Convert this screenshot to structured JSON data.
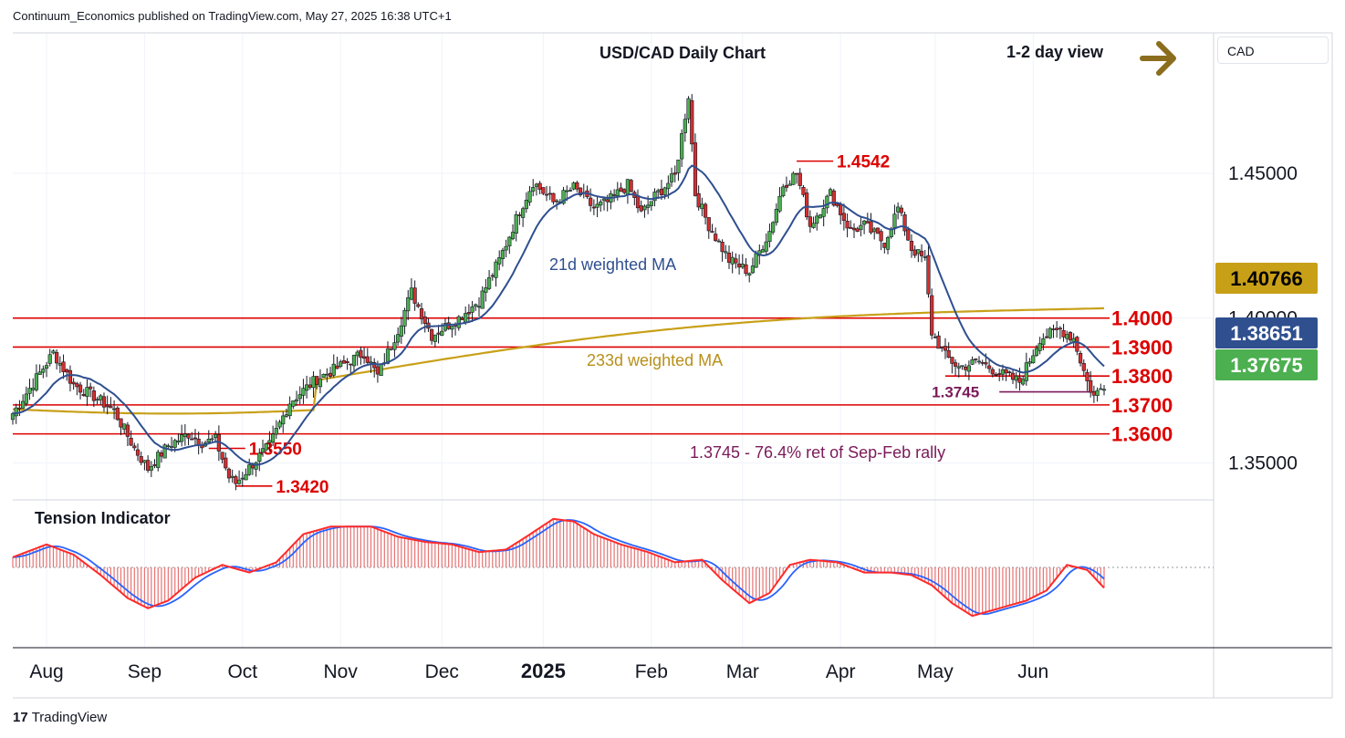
{
  "header": {
    "published": "Continuum_Economics published on TradingView.com, May 27, 2025 16:38 UTC+1"
  },
  "currency_badge": "CAD",
  "footer": {
    "brand": "TradingView",
    "logo_glyph": "17"
  },
  "colors": {
    "candle_up": "#4caf50",
    "candle_down": "#d32f2f",
    "ma21": "#2f4f8f",
    "ma233": "#c8a018",
    "level_line": "#dd0000",
    "fib": "#7b1a5a",
    "arrow": "#8b6d1e",
    "tension_fill": "#e57373",
    "tension_fast": "#ff2a2a",
    "tension_slow": "#2962ff"
  },
  "chart_data": {
    "type": "candlestick",
    "title": "USD/CAD Daily Chart",
    "view_label": "1-2 day view",
    "view_direction": "right",
    "x_ticks": [
      "Aug",
      "Sep",
      "Oct",
      "Nov",
      "Dec",
      "2025",
      "Feb",
      "Mar",
      "Apr",
      "May",
      "Jun"
    ],
    "y_ticks": [
      "1.35000",
      "1.40000",
      "1.45000"
    ],
    "y_tick_values": [
      1.35,
      1.4,
      1.45
    ],
    "ylim": [
      1.3372,
      1.4985
    ],
    "price_tags": [
      {
        "label": "1.40766",
        "value": 1.40766,
        "bg": "#c8a018",
        "color": "#000000"
      },
      {
        "label": "1.38651",
        "value": 1.38651,
        "bg": "#2f4f8f",
        "color": "#ffffff"
      },
      {
        "label": "1.37675",
        "value": 1.37675,
        "bg": "#4caf50",
        "color": "#ffffff"
      }
    ],
    "levels": [
      {
        "label": "1.4000",
        "value": 1.4,
        "scope": "full"
      },
      {
        "label": "1.3900",
        "value": 1.39,
        "scope": "full"
      },
      {
        "label": "1.3800",
        "value": 1.38,
        "scope": "right"
      },
      {
        "label": "1.3700",
        "value": 1.37,
        "scope": "full"
      },
      {
        "label": "1.3600",
        "value": 1.36,
        "scope": "full"
      }
    ],
    "markers": [
      {
        "label": "1.4542",
        "value": 1.4542,
        "date": "Mar"
      },
      {
        "label": "1.3550",
        "value": 1.355,
        "date": "Sep"
      },
      {
        "label": "1.3420",
        "value": 1.342,
        "date": "Sep"
      }
    ],
    "fib": {
      "label": "1.3745",
      "value": 1.3745,
      "note": "1.3745 - 76.4% ret of Sep-Feb rally"
    },
    "series": [
      {
        "name": "21d weighted MA"
      },
      {
        "name": "233d weighted MA"
      }
    ],
    "indicator": {
      "title": "Tension Indicator"
    },
    "anchors": [
      [
        0,
        1.367
      ],
      [
        8,
        1.381
      ],
      [
        12,
        1.388
      ],
      [
        18,
        1.377
      ],
      [
        24,
        1.373
      ],
      [
        30,
        1.368
      ],
      [
        36,
        1.355
      ],
      [
        40,
        1.348
      ],
      [
        46,
        1.356
      ],
      [
        52,
        1.36
      ],
      [
        56,
        1.357
      ],
      [
        60,
        1.358
      ],
      [
        64,
        1.345
      ],
      [
        66,
        1.343
      ],
      [
        72,
        1.351
      ],
      [
        76,
        1.356
      ],
      [
        82,
        1.371
      ],
      [
        90,
        1.379
      ],
      [
        98,
        1.384
      ],
      [
        104,
        1.388
      ],
      [
        108,
        1.38
      ],
      [
        114,
        1.396
      ],
      [
        118,
        1.409
      ],
      [
        124,
        1.394
      ],
      [
        132,
        1.4
      ],
      [
        138,
        1.406
      ],
      [
        144,
        1.42
      ],
      [
        150,
        1.437
      ],
      [
        154,
        1.447
      ],
      [
        160,
        1.44
      ],
      [
        166,
        1.445
      ],
      [
        172,
        1.438
      ],
      [
        176,
        1.44
      ],
      [
        182,
        1.446
      ],
      [
        186,
        1.436
      ],
      [
        190,
        1.442
      ],
      [
        196,
        1.449
      ],
      [
        200,
        1.477
      ],
      [
        202,
        1.443
      ],
      [
        206,
        1.432
      ],
      [
        212,
        1.42
      ],
      [
        218,
        1.416
      ],
      [
        224,
        1.43
      ],
      [
        228,
        1.446
      ],
      [
        232,
        1.45
      ],
      [
        236,
        1.432
      ],
      [
        242,
        1.443
      ],
      [
        248,
        1.43
      ],
      [
        252,
        1.432
      ],
      [
        258,
        1.426
      ],
      [
        262,
        1.438
      ],
      [
        266,
        1.424
      ],
      [
        270,
        1.42
      ],
      [
        272,
        1.395
      ],
      [
        276,
        1.387
      ],
      [
        280,
        1.383
      ],
      [
        286,
        1.385
      ],
      [
        292,
        1.381
      ],
      [
        298,
        1.378
      ],
      [
        304,
        1.393
      ],
      [
        310,
        1.396
      ],
      [
        314,
        1.393
      ],
      [
        318,
        1.378
      ],
      [
        320,
        1.373
      ],
      [
        323,
        1.377
      ]
    ],
    "tension_anchors": [
      [
        0,
        0.4
      ],
      [
        10,
        0.9
      ],
      [
        18,
        0.5
      ],
      [
        26,
        -0.3
      ],
      [
        34,
        -1.2
      ],
      [
        40,
        -1.6
      ],
      [
        46,
        -1.3
      ],
      [
        54,
        -0.4
      ],
      [
        62,
        0.1
      ],
      [
        70,
        -0.2
      ],
      [
        78,
        0.2
      ],
      [
        86,
        1.3
      ],
      [
        94,
        1.6
      ],
      [
        106,
        1.6
      ],
      [
        114,
        1.2
      ],
      [
        122,
        1.0
      ],
      [
        130,
        0.9
      ],
      [
        138,
        0.6
      ],
      [
        146,
        0.7
      ],
      [
        152,
        1.2
      ],
      [
        160,
        1.9
      ],
      [
        166,
        1.8
      ],
      [
        172,
        1.3
      ],
      [
        180,
        0.9
      ],
      [
        188,
        0.6
      ],
      [
        196,
        0.2
      ],
      [
        204,
        0.3
      ],
      [
        210,
        -0.5
      ],
      [
        218,
        -1.4
      ],
      [
        224,
        -1.0
      ],
      [
        230,
        0.1
      ],
      [
        236,
        0.3
      ],
      [
        244,
        0.2
      ],
      [
        252,
        -0.2
      ],
      [
        260,
        -0.2
      ],
      [
        266,
        -0.3
      ],
      [
        272,
        -0.7
      ],
      [
        278,
        -1.4
      ],
      [
        284,
        -1.9
      ],
      [
        292,
        -1.6
      ],
      [
        300,
        -1.3
      ],
      [
        306,
        -0.9
      ],
      [
        312,
        0.1
      ],
      [
        318,
        -0.1
      ],
      [
        323,
        -0.8
      ]
    ]
  }
}
